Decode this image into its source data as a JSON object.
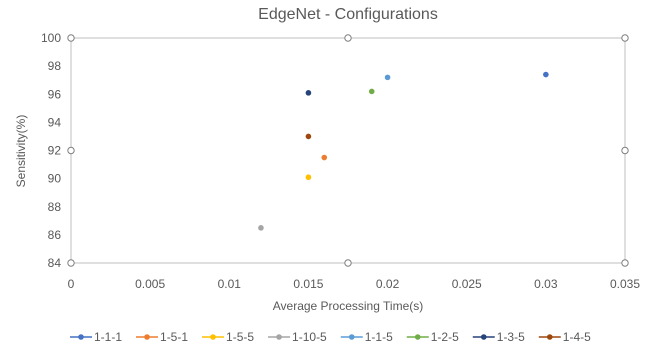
{
  "chart_data": {
    "type": "scatter",
    "title": "EdgeNet - Configurations",
    "xlabel": "Average Processing Time(s)",
    "ylabel": "Sensitivity(%)",
    "xlim": [
      0,
      0.035
    ],
    "ylim": [
      84,
      100
    ],
    "x_ticks": [
      "0",
      "0.005",
      "0.01",
      "0.015",
      "0.02",
      "0.025",
      "0.03",
      "0.035"
    ],
    "y_ticks": [
      "84",
      "86",
      "88",
      "90",
      "92",
      "94",
      "96",
      "98",
      "100"
    ],
    "grid": false,
    "legend_position": "bottom",
    "series": [
      {
        "name": "1-1-1",
        "color": "#4472C4",
        "x": 0.03,
        "y": 97.4
      },
      {
        "name": "1-5-1",
        "color": "#ED7D31",
        "x": 0.016,
        "y": 91.5
      },
      {
        "name": "1-5-5",
        "color": "#FFC000",
        "x": 0.015,
        "y": 90.1
      },
      {
        "name": "1-10-5",
        "color": "#A5A5A5",
        "x": 0.012,
        "y": 86.5
      },
      {
        "name": "1-1-5",
        "color": "#5B9BD5",
        "x": 0.02,
        "y": 97.2
      },
      {
        "name": "1-2-5",
        "color": "#70AD47",
        "x": 0.019,
        "y": 96.2
      },
      {
        "name": "1-3-5",
        "color": "#264478",
        "x": 0.015,
        "y": 96.1
      },
      {
        "name": "1-4-5",
        "color": "#9E480E",
        "x": 0.015,
        "y": 93.0
      }
    ]
  }
}
